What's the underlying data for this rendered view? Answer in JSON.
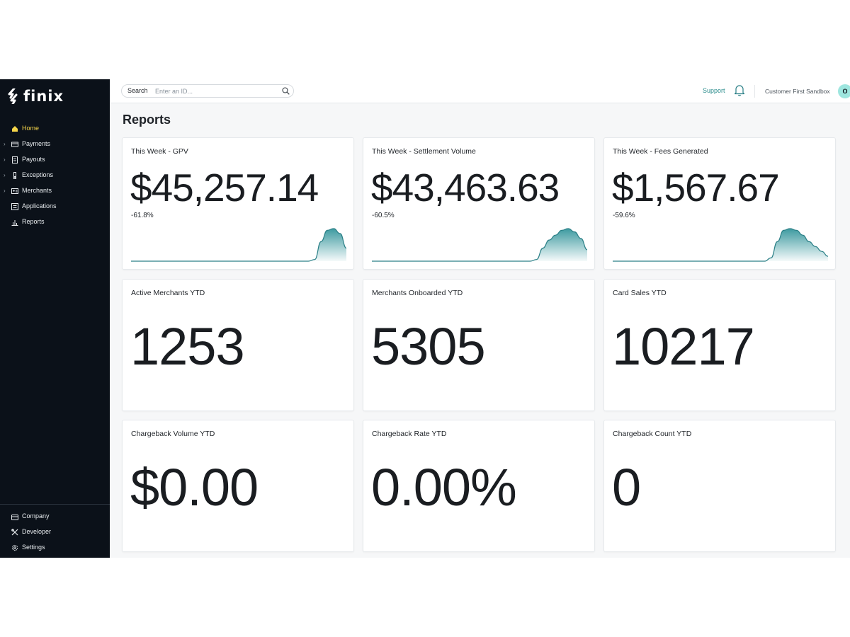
{
  "sidebar": {
    "logo_text": "finix",
    "items": [
      {
        "label": "Home",
        "icon": "home-icon",
        "active": true,
        "expandable": false
      },
      {
        "label": "Payments",
        "icon": "credit-card-icon",
        "active": false,
        "expandable": true
      },
      {
        "label": "Payouts",
        "icon": "document-icon",
        "active": false,
        "expandable": true
      },
      {
        "label": "Exceptions",
        "icon": "exclamation-icon",
        "active": false,
        "expandable": true
      },
      {
        "label": "Merchants",
        "icon": "id-card-icon",
        "active": false,
        "expandable": true
      },
      {
        "label": "Applications",
        "icon": "list-icon",
        "active": false,
        "expandable": false
      },
      {
        "label": "Reports",
        "icon": "chart-icon",
        "active": false,
        "expandable": false
      }
    ],
    "bottom_items": [
      {
        "label": "Company",
        "icon": "building-icon"
      },
      {
        "label": "Developer",
        "icon": "tools-icon"
      },
      {
        "label": "Settings",
        "icon": "gear-icon"
      }
    ],
    "accent_color": "#f5d54a"
  },
  "topbar": {
    "search_label": "Search",
    "search_placeholder": "Enter an ID...",
    "support_label": "Support",
    "account_name": "Customer First Sandbox",
    "avatar_initial": "O"
  },
  "page": {
    "title": "Reports"
  },
  "cards": [
    {
      "title": "This Week - GPV",
      "value": "$45,257.14",
      "delta": "-61.8%",
      "sparkline": [
        0,
        0,
        0,
        0,
        0,
        0,
        0,
        0,
        0,
        0,
        0,
        0,
        0,
        0,
        0,
        0,
        0,
        0,
        0,
        0,
        0,
        0,
        0,
        0,
        0,
        0,
        0,
        0,
        0,
        0.05,
        0.6,
        0.95,
        1,
        0.85,
        0.4
      ]
    },
    {
      "title": "This Week - Settlement Volume",
      "value": "$43,463.63",
      "delta": "-60.5%",
      "sparkline": [
        0,
        0,
        0,
        0,
        0,
        0,
        0,
        0,
        0,
        0,
        0,
        0,
        0,
        0,
        0,
        0,
        0,
        0,
        0,
        0,
        0,
        0,
        0,
        0,
        0,
        0,
        0.05,
        0.4,
        0.65,
        0.8,
        0.95,
        1,
        0.9,
        0.7,
        0.35
      ]
    },
    {
      "title": "This Week - Fees Generated",
      "value": "$1,567.67",
      "delta": "-59.6%",
      "sparkline": [
        0,
        0,
        0,
        0,
        0,
        0,
        0,
        0,
        0,
        0,
        0,
        0,
        0,
        0,
        0,
        0,
        0,
        0,
        0,
        0,
        0,
        0,
        0,
        0,
        0,
        0.1,
        0.6,
        0.95,
        1,
        0.95,
        0.8,
        0.6,
        0.45,
        0.3,
        0.15
      ]
    },
    {
      "title": "Active Merchants YTD",
      "value": "1253"
    },
    {
      "title": "Merchants Onboarded YTD",
      "value": "5305"
    },
    {
      "title": "Card Sales YTD",
      "value": "10217"
    },
    {
      "title": "Chargeback Volume YTD",
      "value": "$0.00"
    },
    {
      "title": "Chargeback Rate YTD",
      "value": "0.00%"
    },
    {
      "title": "Chargeback Count YTD",
      "value": "0"
    }
  ],
  "colors": {
    "sparkline_stroke": "#2a7f86",
    "sparkline_fill": "#3d9aa0",
    "support_link": "#2a8c8c"
  }
}
